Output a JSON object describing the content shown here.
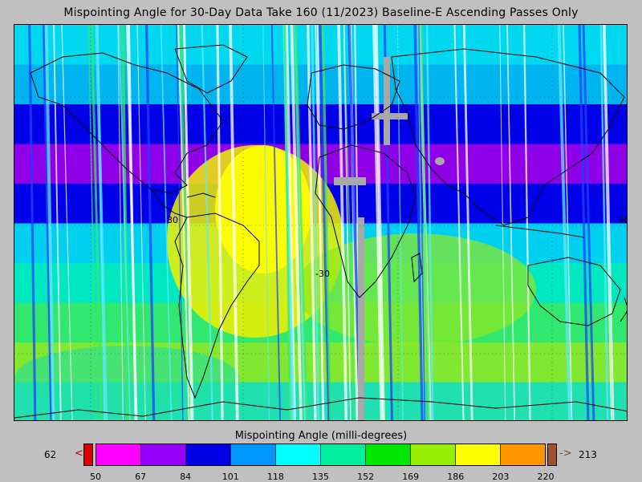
{
  "title": "Mispointing Angle for 30-Day Data Take 160 (11/2023) Baseline-E Ascending Passes Only",
  "map": {
    "lat_labels": [
      "30",
      "-30"
    ],
    "region_label": "30",
    "band_colors": [
      "#00d8f0",
      "#00b4f0",
      "#0000e8",
      "#8f00e8",
      "#0000e8",
      "#00d0f0",
      "#00e8c0",
      "#30e870",
      "#80e830",
      "#20e0b0"
    ]
  },
  "colorbar": {
    "title": "Mispointing Angle (milli-degrees)",
    "under_value": "62",
    "over_value": "213",
    "under_arrow": "<",
    "over_arrow": "->",
    "ticks": [
      "50",
      "67",
      "84",
      "101",
      "118",
      "135",
      "152",
      "169",
      "186",
      "203",
      "220"
    ],
    "colors": [
      "#ff00ff",
      "#9600ff",
      "#0000e6",
      "#0096ff",
      "#00ffff",
      "#00ee9e",
      "#00e600",
      "#96ee00",
      "#ffff00",
      "#ff9600"
    ],
    "under_color": "#e00000",
    "over_color": "#a0522d"
  }
}
